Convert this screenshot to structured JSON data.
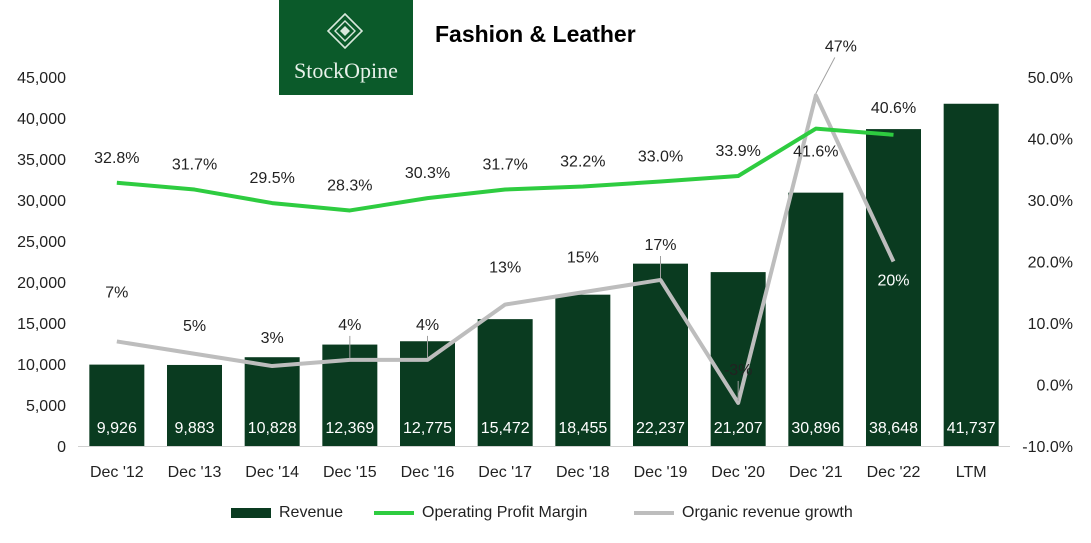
{
  "logo": {
    "text": "StockOpine"
  },
  "title": "Fashion & Leather",
  "colors": {
    "revenue": "#0a3b20",
    "margin": "#2ecc40",
    "growth": "#bdbdbd",
    "logo_bg": "#0b5a2a"
  },
  "chart_data": {
    "type": "bar",
    "title": "Fashion & Leather",
    "categories": [
      "Dec '12",
      "Dec '13",
      "Dec '14",
      "Dec '15",
      "Dec '16",
      "Dec '17",
      "Dec '18",
      "Dec '19",
      "Dec '20",
      "Dec '21",
      "Dec '22",
      "LTM"
    ],
    "revenue": {
      "name": "Revenue",
      "axis": "left",
      "values": [
        9926,
        9883,
        10828,
        12369,
        12775,
        15472,
        18455,
        22237,
        21207,
        30896,
        38648,
        41737
      ],
      "labels": [
        "9,926",
        "9,883",
        "10,828",
        "12,369",
        "12,775",
        "15,472",
        "18,455",
        "22,237",
        "21,207",
        "30,896",
        "38,648",
        "41,737"
      ]
    },
    "operating_margin": {
      "name": "Operating Profit Margin",
      "axis": "right",
      "values": [
        32.8,
        31.7,
        29.5,
        28.3,
        30.3,
        31.7,
        32.2,
        33.0,
        33.9,
        41.6,
        40.6,
        null
      ],
      "labels": [
        "32.8%",
        "31.7%",
        "29.5%",
        "28.3%",
        "30.3%",
        "31.7%",
        "32.2%",
        "33.0%",
        "33.9%",
        "41.6%",
        "40.6%",
        ""
      ]
    },
    "organic_growth": {
      "name": "Organic revenue growth",
      "axis": "right",
      "values": [
        7,
        5,
        3,
        4,
        4,
        13,
        15,
        17,
        -3,
        47,
        20,
        null
      ],
      "labels": [
        "7%",
        "5%",
        "3%",
        "4%",
        "4%",
        "13%",
        "15%",
        "17%",
        "-3%",
        "47%",
        "20%",
        ""
      ]
    },
    "y_left": {
      "min": 0,
      "max": 45000,
      "ticks": [
        "0",
        "5,000",
        "10,000",
        "15,000",
        "20,000",
        "25,000",
        "30,000",
        "35,000",
        "40,000",
        "45,000"
      ]
    },
    "y_right": {
      "min": -10,
      "max": 50,
      "ticks": [
        "-10.0%",
        "0.0%",
        "10.0%",
        "20.0%",
        "30.0%",
        "40.0%",
        "50.0%"
      ]
    },
    "grid": false,
    "legend": {
      "placement": "bottom",
      "items": [
        "Revenue",
        "Operating Profit Margin",
        "Organic revenue growth"
      ]
    }
  }
}
